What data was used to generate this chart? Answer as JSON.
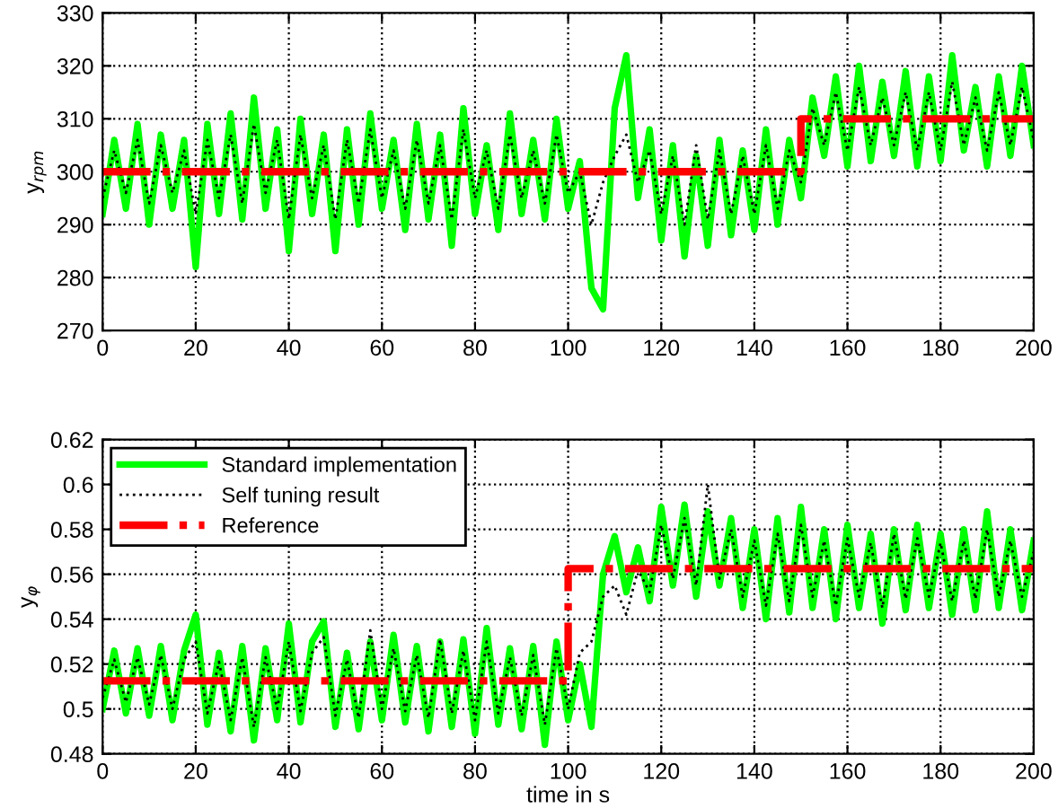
{
  "chart_data": [
    {
      "type": "line",
      "ylabel": "y$_{rpm}$",
      "xlim": [
        0,
        200
      ],
      "ylim": [
        270,
        330
      ],
      "xticks": [
        0,
        20,
        40,
        60,
        80,
        100,
        120,
        140,
        160,
        180,
        200
      ],
      "yticks": [
        270,
        280,
        290,
        300,
        310,
        320,
        330
      ],
      "grid": true,
      "legend": false,
      "x": [
        0,
        2.5,
        5,
        7.5,
        10,
        12.5,
        15,
        17.5,
        20,
        22.5,
        25,
        27.5,
        30,
        32.5,
        35,
        37.5,
        40,
        42.5,
        45,
        47.5,
        50,
        52.5,
        55,
        57.5,
        60,
        62.5,
        65,
        67.5,
        70,
        72.5,
        75,
        77.5,
        80,
        82.5,
        85,
        87.5,
        90,
        92.5,
        95,
        97.5,
        100,
        102.5,
        105,
        107.5,
        110,
        112.5,
        115,
        117.5,
        120,
        122.5,
        125,
        127.5,
        130,
        132.5,
        135,
        137.5,
        140,
        142.5,
        145,
        147.5,
        150,
        152.5,
        155,
        157.5,
        160,
        162.5,
        165,
        167.5,
        170,
        172.5,
        175,
        177.5,
        180,
        182.5,
        185,
        187.5,
        190,
        192.5,
        195,
        197.5,
        200
      ],
      "series": [
        {
          "color": "#00ff00",
          "line_style": "solid",
          "values": [
            292,
            306,
            293,
            309,
            290,
            307,
            293,
            306,
            282,
            309,
            292,
            311,
            291,
            314,
            293,
            308,
            285,
            310,
            292,
            307,
            285,
            308,
            290,
            311,
            293,
            306,
            289,
            309,
            291,
            307,
            286,
            312,
            292,
            305,
            289,
            311,
            292,
            306,
            291,
            310,
            293,
            302,
            278,
            274,
            312,
            322,
            295,
            308,
            287,
            305,
            284,
            303,
            286,
            306,
            288,
            304,
            289,
            308,
            290,
            306,
            295,
            314,
            303,
            318,
            301,
            320,
            302,
            317,
            303,
            319,
            301,
            318,
            302,
            322,
            304,
            316,
            301,
            318,
            303,
            320,
            305
          ]
        },
        {
          "color": "#000000",
          "line_style": "dotted",
          "values": [
            295,
            304,
            296,
            306,
            294,
            305,
            296,
            304,
            292,
            306,
            295,
            307,
            294,
            309,
            296,
            306,
            291,
            307,
            295,
            305,
            291,
            306,
            294,
            308,
            295,
            304,
            293,
            306,
            294,
            305,
            291,
            308,
            295,
            304,
            293,
            307,
            295,
            304,
            294,
            307,
            296,
            300,
            290,
            298,
            303,
            307,
            298,
            304,
            292,
            303,
            290,
            305,
            291,
            304,
            292,
            303,
            292,
            305,
            293,
            304,
            298,
            312,
            305,
            315,
            304,
            316,
            305,
            314,
            305,
            315,
            304,
            315,
            304,
            317,
            305,
            314,
            304,
            315,
            305,
            316,
            306
          ]
        },
        {
          "color": "#ff0000",
          "line_style": "dashdot",
          "x": [
            0,
            150,
            150,
            200
          ],
          "values": [
            300,
            300,
            310,
            310
          ]
        }
      ]
    },
    {
      "type": "line",
      "ylabel": "y$_{φ}$",
      "xlabel": "time in s",
      "xlim": [
        0,
        200
      ],
      "ylim": [
        0.48,
        0.62
      ],
      "xticks": [
        0,
        20,
        40,
        60,
        80,
        100,
        120,
        140,
        160,
        180,
        200
      ],
      "yticks": [
        0.48,
        0.5,
        0.52,
        0.54,
        0.56,
        0.58,
        0.6,
        0.62
      ],
      "grid": true,
      "legend": "top left",
      "x": [
        0,
        2.5,
        5,
        7.5,
        10,
        12.5,
        15,
        17.5,
        20,
        22.5,
        25,
        27.5,
        30,
        32.5,
        35,
        37.5,
        40,
        42.5,
        45,
        47.5,
        50,
        52.5,
        55,
        57.5,
        60,
        62.5,
        65,
        67.5,
        70,
        72.5,
        75,
        77.5,
        80,
        82.5,
        85,
        87.5,
        90,
        92.5,
        95,
        97.5,
        100,
        102.5,
        105,
        107.5,
        110,
        112.5,
        115,
        117.5,
        120,
        122.5,
        125,
        127.5,
        130,
        132.5,
        135,
        137.5,
        140,
        142.5,
        145,
        147.5,
        150,
        152.5,
        155,
        157.5,
        160,
        162.5,
        165,
        167.5,
        170,
        172.5,
        175,
        177.5,
        180,
        182.5,
        185,
        187.5,
        190,
        192.5,
        195,
        197.5,
        200
      ],
      "series": [
        {
          "name": "Standard implementation",
          "color": "#00ff00",
          "line_style": "solid",
          "values": [
            0.5,
            0.526,
            0.498,
            0.527,
            0.497,
            0.528,
            0.495,
            0.526,
            0.542,
            0.493,
            0.525,
            0.49,
            0.528,
            0.486,
            0.527,
            0.495,
            0.538,
            0.494,
            0.53,
            0.539,
            0.492,
            0.525,
            0.491,
            0.53,
            0.495,
            0.533,
            0.494,
            0.528,
            0.49,
            0.53,
            0.492,
            0.531,
            0.489,
            0.536,
            0.493,
            0.527,
            0.491,
            0.528,
            0.484,
            0.53,
            0.495,
            0.52,
            0.492,
            0.56,
            0.577,
            0.552,
            0.572,
            0.548,
            0.59,
            0.555,
            0.591,
            0.55,
            0.588,
            0.555,
            0.585,
            0.545,
            0.58,
            0.54,
            0.585,
            0.543,
            0.59,
            0.545,
            0.58,
            0.54,
            0.582,
            0.545,
            0.578,
            0.538,
            0.58,
            0.544,
            0.582,
            0.545,
            0.578,
            0.542,
            0.58,
            0.544,
            0.588,
            0.545,
            0.58,
            0.544,
            0.575
          ]
        },
        {
          "name": "Self tuning result",
          "color": "#000000",
          "line_style": "dotted",
          "values": [
            0.505,
            0.522,
            0.503,
            0.523,
            0.502,
            0.524,
            0.5,
            0.522,
            0.53,
            0.498,
            0.521,
            0.495,
            0.523,
            0.492,
            0.523,
            0.5,
            0.53,
            0.499,
            0.525,
            0.532,
            0.497,
            0.522,
            0.496,
            0.535,
            0.5,
            0.527,
            0.499,
            0.524,
            0.496,
            0.531,
            0.498,
            0.526,
            0.495,
            0.53,
            0.498,
            0.523,
            0.497,
            0.524,
            0.493,
            0.527,
            0.5,
            0.525,
            0.53,
            0.55,
            0.555,
            0.542,
            0.562,
            0.552,
            0.582,
            0.558,
            0.585,
            0.555,
            0.6,
            0.558,
            0.58,
            0.55,
            0.575,
            0.546,
            0.578,
            0.548,
            0.582,
            0.55,
            0.575,
            0.546,
            0.576,
            0.55,
            0.574,
            0.545,
            0.578,
            0.549,
            0.576,
            0.55,
            0.574,
            0.548,
            0.575,
            0.549,
            0.58,
            0.55,
            0.575,
            0.55,
            0.57
          ]
        },
        {
          "name": "Reference",
          "color": "#ff0000",
          "line_style": "dashdot",
          "x": [
            0,
            100,
            100,
            200
          ],
          "values": [
            0.5125,
            0.5125,
            0.5625,
            0.5625
          ]
        }
      ]
    }
  ]
}
